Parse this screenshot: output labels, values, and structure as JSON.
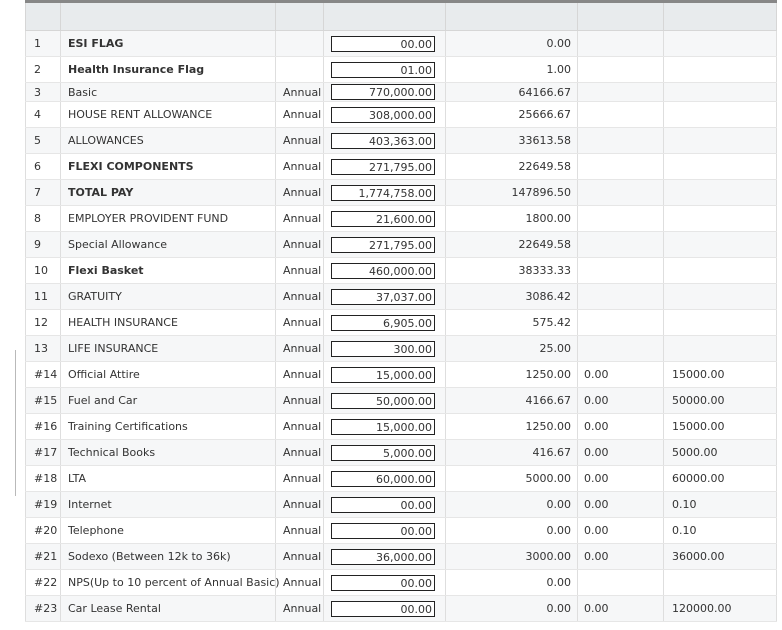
{
  "rows": [
    {
      "no": "1",
      "name": "ESI FLAG",
      "bold": true,
      "freq": "",
      "amount": "00.00",
      "monthly": "0.00",
      "ytd": "",
      "total": ""
    },
    {
      "no": "2",
      "name": "Health Insurance Flag",
      "bold": true,
      "freq": "",
      "amount": "01.00",
      "monthly": "1.00",
      "ytd": "",
      "total": ""
    },
    {
      "no": "3",
      "name": "Basic",
      "bold": false,
      "freq": "Annual",
      "amount": "770,000.00",
      "monthly": "64166.67",
      "ytd": "",
      "total": ""
    },
    {
      "no": "4",
      "name": "HOUSE RENT ALLOWANCE",
      "bold": false,
      "freq": "Annual",
      "amount": "308,000.00",
      "monthly": "25666.67",
      "ytd": "",
      "total": ""
    },
    {
      "no": "5",
      "name": "ALLOWANCES",
      "bold": false,
      "freq": "Annual",
      "amount": "403,363.00",
      "monthly": "33613.58",
      "ytd": "",
      "total": ""
    },
    {
      "no": "6",
      "name": "FLEXI COMPONENTS",
      "bold": true,
      "freq": "Annual",
      "amount": "271,795.00",
      "monthly": "22649.58",
      "ytd": "",
      "total": ""
    },
    {
      "no": "7",
      "name": "TOTAL PAY",
      "bold": true,
      "freq": "Annual",
      "amount": "1,774,758.00",
      "monthly": "147896.50",
      "ytd": "",
      "total": ""
    },
    {
      "no": "8",
      "name": "EMPLOYER PROVIDENT FUND",
      "bold": false,
      "freq": "Annual",
      "amount": "21,600.00",
      "monthly": "1800.00",
      "ytd": "",
      "total": ""
    },
    {
      "no": "9",
      "name": "Special Allowance",
      "bold": false,
      "freq": "Annual",
      "amount": "271,795.00",
      "monthly": "22649.58",
      "ytd": "",
      "total": ""
    },
    {
      "no": "10",
      "name": "Flexi Basket",
      "bold": true,
      "freq": "Annual",
      "amount": "460,000.00",
      "monthly": "38333.33",
      "ytd": "",
      "total": ""
    },
    {
      "no": "11",
      "name": "GRATUITY",
      "bold": false,
      "freq": "Annual",
      "amount": "37,037.00",
      "monthly": "3086.42",
      "ytd": "",
      "total": ""
    },
    {
      "no": "12",
      "name": "HEALTH INSURANCE",
      "bold": false,
      "freq": "Annual",
      "amount": "6,905.00",
      "monthly": "575.42",
      "ytd": "",
      "total": ""
    },
    {
      "no": "13",
      "name": "LIFE INSURANCE",
      "bold": false,
      "freq": "Annual",
      "amount": "300.00",
      "monthly": "25.00",
      "ytd": "",
      "total": ""
    },
    {
      "no": "#14",
      "name": "Official Attire",
      "bold": false,
      "freq": "Annual",
      "amount": "15,000.00",
      "monthly": "1250.00",
      "ytd": "0.00",
      "total": "15000.00"
    },
    {
      "no": "#15",
      "name": "Fuel and Car",
      "bold": false,
      "freq": "Annual",
      "amount": "50,000.00",
      "monthly": "4166.67",
      "ytd": "0.00",
      "total": "50000.00"
    },
    {
      "no": "#16",
      "name": "Training Certifications",
      "bold": false,
      "freq": "Annual",
      "amount": "15,000.00",
      "monthly": "1250.00",
      "ytd": "0.00",
      "total": "15000.00"
    },
    {
      "no": "#17",
      "name": "Technical Books",
      "bold": false,
      "freq": "Annual",
      "amount": "5,000.00",
      "monthly": "416.67",
      "ytd": "0.00",
      "total": "5000.00"
    },
    {
      "no": "#18",
      "name": "LTA",
      "bold": false,
      "freq": "Annual",
      "amount": "60,000.00",
      "monthly": "5000.00",
      "ytd": "0.00",
      "total": "60000.00"
    },
    {
      "no": "#19",
      "name": "Internet",
      "bold": false,
      "freq": "Annual",
      "amount": "00.00",
      "monthly": "0.00",
      "ytd": "0.00",
      "total": "0.10"
    },
    {
      "no": "#20",
      "name": "Telephone",
      "bold": false,
      "freq": "Annual",
      "amount": "00.00",
      "monthly": "0.00",
      "ytd": "0.00",
      "total": "0.10"
    },
    {
      "no": "#21",
      "name": "Sodexo (Between 12k to 36k)",
      "bold": false,
      "freq": "Annual",
      "amount": "36,000.00",
      "monthly": "3000.00",
      "ytd": "0.00",
      "total": "36000.00"
    },
    {
      "no": "#22",
      "name": "NPS(Up to 10 percent of Annual Basic)",
      "bold": false,
      "freq": "Annual",
      "amount": "00.00",
      "monthly": "0.00",
      "ytd": "",
      "total": ""
    },
    {
      "no": "#23",
      "name": "Car Lease Rental",
      "bold": false,
      "freq": "Annual",
      "amount": "00.00",
      "monthly": "0.00",
      "ytd": "0.00",
      "total": "120000.00"
    }
  ]
}
